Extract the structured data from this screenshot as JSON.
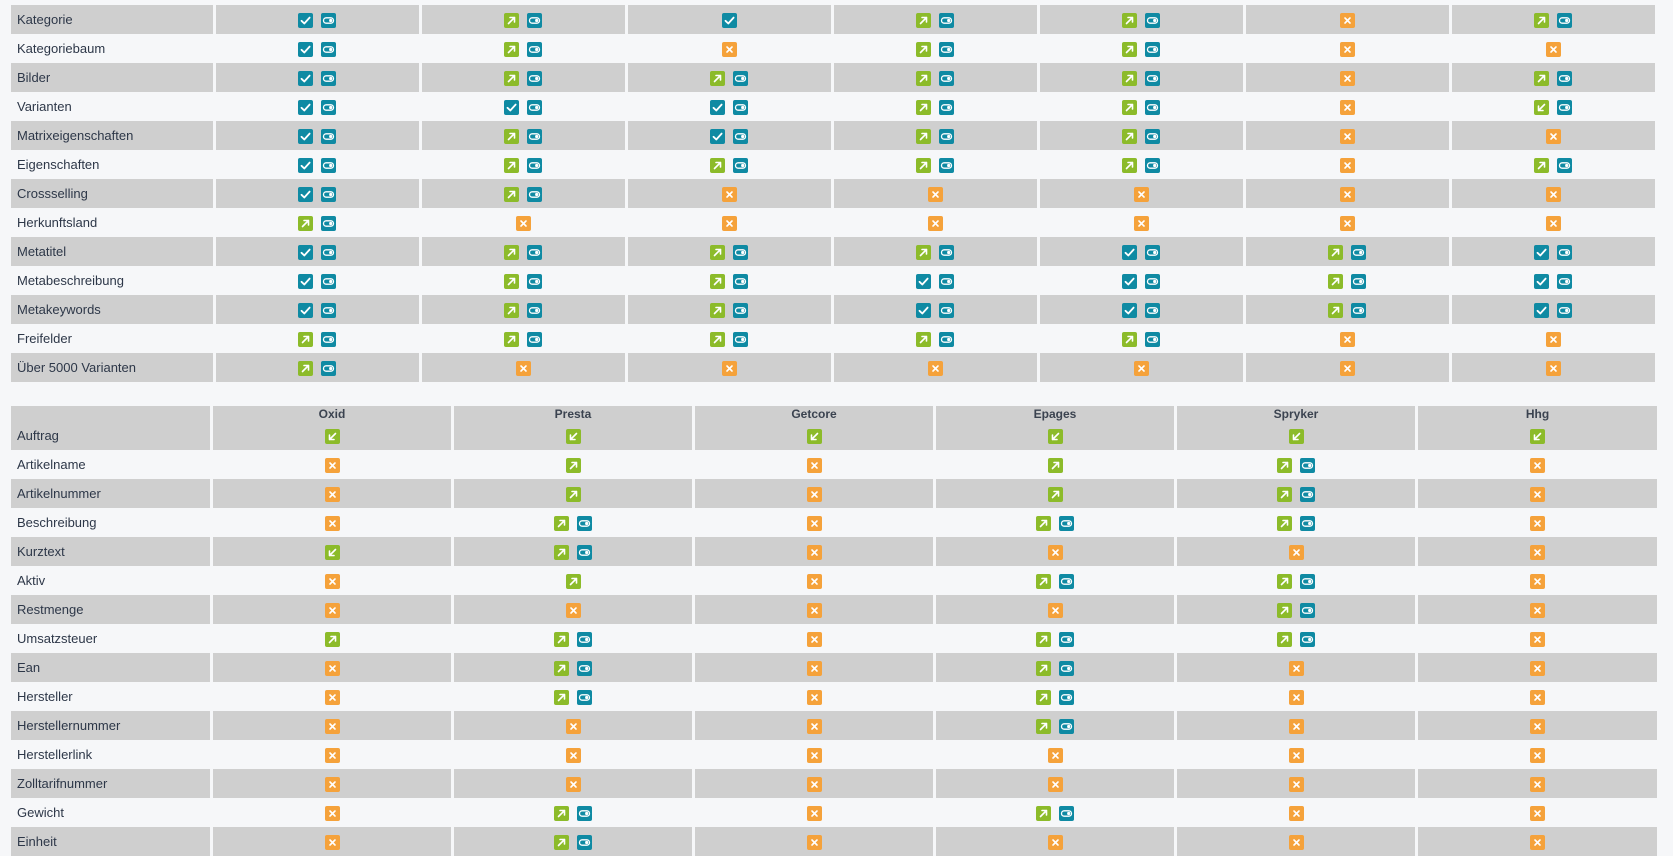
{
  "colors": {
    "check": "#0f8aa3",
    "sync": "#0f8aa3",
    "export": "#8cbb2a",
    "import": "#8cbb2a",
    "unsupported": "#f5a23b",
    "row_alt": "#cfcfcf",
    "bg": "#f6f7f9"
  },
  "table_top": {
    "rows": [
      {
        "label": "Kategorie",
        "cells": [
          [
            "check",
            "eye"
          ],
          [
            "out",
            "eye"
          ],
          [
            "check"
          ],
          [
            "out",
            "eye"
          ],
          [
            "out",
            "eye"
          ],
          [
            "x"
          ],
          [
            "out",
            "eye"
          ]
        ]
      },
      {
        "label": "Kategoriebaum",
        "cells": [
          [
            "check",
            "eye"
          ],
          [
            "out",
            "eye"
          ],
          [
            "x"
          ],
          [
            "out",
            "eye"
          ],
          [
            "out",
            "eye"
          ],
          [
            "x"
          ],
          [
            "x"
          ]
        ]
      },
      {
        "label": "Bilder",
        "cells": [
          [
            "check",
            "eye"
          ],
          [
            "out",
            "eye"
          ],
          [
            "out",
            "eye"
          ],
          [
            "out",
            "eye"
          ],
          [
            "out",
            "eye"
          ],
          [
            "x"
          ],
          [
            "out",
            "eye"
          ]
        ]
      },
      {
        "label": "Varianten",
        "cells": [
          [
            "check",
            "eye"
          ],
          [
            "check",
            "eye"
          ],
          [
            "check",
            "eye"
          ],
          [
            "out",
            "eye"
          ],
          [
            "out",
            "eye"
          ],
          [
            "x"
          ],
          [
            "in",
            "eye"
          ]
        ]
      },
      {
        "label": "Matrixeigenschaften",
        "cells": [
          [
            "check",
            "eye"
          ],
          [
            "out",
            "eye"
          ],
          [
            "check",
            "eye"
          ],
          [
            "out",
            "eye"
          ],
          [
            "out",
            "eye"
          ],
          [
            "x"
          ],
          [
            "x"
          ]
        ]
      },
      {
        "label": "Eigenschaften",
        "cells": [
          [
            "check",
            "eye"
          ],
          [
            "out",
            "eye"
          ],
          [
            "out",
            "eye"
          ],
          [
            "out",
            "eye"
          ],
          [
            "out",
            "eye"
          ],
          [
            "x"
          ],
          [
            "out",
            "eye"
          ]
        ]
      },
      {
        "label": "Crossselling",
        "cells": [
          [
            "check",
            "eye"
          ],
          [
            "out",
            "eye"
          ],
          [
            "x"
          ],
          [
            "x"
          ],
          [
            "x"
          ],
          [
            "x"
          ],
          [
            "x"
          ]
        ]
      },
      {
        "label": "Herkunftsland",
        "cells": [
          [
            "out",
            "eye"
          ],
          [
            "x"
          ],
          [
            "x"
          ],
          [
            "x"
          ],
          [
            "x"
          ],
          [
            "x"
          ],
          [
            "x"
          ]
        ]
      },
      {
        "label": "Metatitel",
        "cells": [
          [
            "check",
            "eye"
          ],
          [
            "out",
            "eye"
          ],
          [
            "out",
            "eye"
          ],
          [
            "out",
            "eye"
          ],
          [
            "check",
            "eye"
          ],
          [
            "out",
            "eye"
          ],
          [
            "check",
            "eye"
          ]
        ]
      },
      {
        "label": "Metabeschreibung",
        "cells": [
          [
            "check",
            "eye"
          ],
          [
            "out",
            "eye"
          ],
          [
            "out",
            "eye"
          ],
          [
            "check",
            "eye"
          ],
          [
            "check",
            "eye"
          ],
          [
            "out",
            "eye"
          ],
          [
            "check",
            "eye"
          ]
        ]
      },
      {
        "label": "Metakeywords",
        "cells": [
          [
            "check",
            "eye"
          ],
          [
            "out",
            "eye"
          ],
          [
            "out",
            "eye"
          ],
          [
            "check",
            "eye"
          ],
          [
            "check",
            "eye"
          ],
          [
            "out",
            "eye"
          ],
          [
            "check",
            "eye"
          ]
        ]
      },
      {
        "label": "Freifelder",
        "cells": [
          [
            "out",
            "eye"
          ],
          [
            "out",
            "eye"
          ],
          [
            "out",
            "eye"
          ],
          [
            "out",
            "eye"
          ],
          [
            "out",
            "eye"
          ],
          [
            "x"
          ],
          [
            "x"
          ]
        ]
      },
      {
        "label": "Über 5000 Varianten",
        "cells": [
          [
            "out",
            "eye"
          ],
          [
            "x"
          ],
          [
            "x"
          ],
          [
            "x"
          ],
          [
            "x"
          ],
          [
            "x"
          ],
          [
            "x"
          ]
        ]
      }
    ]
  },
  "table_bottom": {
    "columns": [
      "Oxid",
      "Presta",
      "Getcore",
      "Epages",
      "Spryker",
      "Hhg"
    ],
    "rows": [
      {
        "label": "Auftrag",
        "cells": [
          [
            "in"
          ],
          [
            "in"
          ],
          [
            "in"
          ],
          [
            "in"
          ],
          [
            "in"
          ],
          [
            "in"
          ]
        ]
      },
      {
        "label": "Artikelname",
        "cells": [
          [
            "x"
          ],
          [
            "out"
          ],
          [
            "x"
          ],
          [
            "out"
          ],
          [
            "out",
            "eye"
          ],
          [
            "x"
          ]
        ]
      },
      {
        "label": "Artikelnummer",
        "cells": [
          [
            "x"
          ],
          [
            "out"
          ],
          [
            "x"
          ],
          [
            "out"
          ],
          [
            "out",
            "eye"
          ],
          [
            "x"
          ]
        ]
      },
      {
        "label": "Beschreibung",
        "cells": [
          [
            "x"
          ],
          [
            "out",
            "eye"
          ],
          [
            "x"
          ],
          [
            "out",
            "eye"
          ],
          [
            "out",
            "eye"
          ],
          [
            "x"
          ]
        ]
      },
      {
        "label": "Kurztext",
        "cells": [
          [
            "in"
          ],
          [
            "out",
            "eye"
          ],
          [
            "x"
          ],
          [
            "x"
          ],
          [
            "x"
          ],
          [
            "x"
          ]
        ]
      },
      {
        "label": "Aktiv",
        "cells": [
          [
            "x"
          ],
          [
            "out"
          ],
          [
            "x"
          ],
          [
            "out",
            "eye"
          ],
          [
            "out",
            "eye"
          ],
          [
            "x"
          ]
        ]
      },
      {
        "label": "Restmenge",
        "cells": [
          [
            "x"
          ],
          [
            "x"
          ],
          [
            "x"
          ],
          [
            "x"
          ],
          [
            "out",
            "eye"
          ],
          [
            "x"
          ]
        ]
      },
      {
        "label": "Umsatzsteuer",
        "cells": [
          [
            "out"
          ],
          [
            "out",
            "eye"
          ],
          [
            "x"
          ],
          [
            "out",
            "eye"
          ],
          [
            "out",
            "eye"
          ],
          [
            "x"
          ]
        ]
      },
      {
        "label": "Ean",
        "cells": [
          [
            "x"
          ],
          [
            "out",
            "eye"
          ],
          [
            "x"
          ],
          [
            "out",
            "eye"
          ],
          [
            "x"
          ],
          [
            "x"
          ]
        ]
      },
      {
        "label": "Hersteller",
        "cells": [
          [
            "x"
          ],
          [
            "out",
            "eye"
          ],
          [
            "x"
          ],
          [
            "out",
            "eye"
          ],
          [
            "x"
          ],
          [
            "x"
          ]
        ]
      },
      {
        "label": "Herstellernummer",
        "cells": [
          [
            "x"
          ],
          [
            "x"
          ],
          [
            "x"
          ],
          [
            "out",
            "eye"
          ],
          [
            "x"
          ],
          [
            "x"
          ]
        ]
      },
      {
        "label": "Herstellerlink",
        "cells": [
          [
            "x"
          ],
          [
            "x"
          ],
          [
            "x"
          ],
          [
            "x"
          ],
          [
            "x"
          ],
          [
            "x"
          ]
        ]
      },
      {
        "label": "Zolltarifnummer",
        "cells": [
          [
            "x"
          ],
          [
            "x"
          ],
          [
            "x"
          ],
          [
            "x"
          ],
          [
            "x"
          ],
          [
            "x"
          ]
        ]
      },
      {
        "label": "Gewicht",
        "cells": [
          [
            "x"
          ],
          [
            "out",
            "eye"
          ],
          [
            "x"
          ],
          [
            "out",
            "eye"
          ],
          [
            "x"
          ],
          [
            "x"
          ]
        ]
      },
      {
        "label": "Einheit",
        "cells": [
          [
            "x"
          ],
          [
            "out",
            "eye"
          ],
          [
            "x"
          ],
          [
            "x"
          ],
          [
            "x"
          ],
          [
            "x"
          ]
        ]
      }
    ]
  }
}
